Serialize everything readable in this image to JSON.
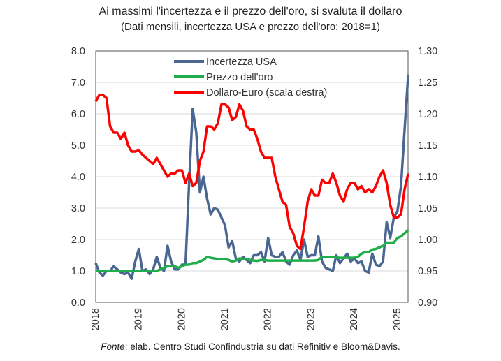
{
  "chart_data": {
    "type": "line",
    "title": "Ai massimi l'incertezza e il prezzo dell'oro, si svaluta il dollaro",
    "subtitle": "(Dati mensili, incertezza USA e prezzo dell'oro: 2018=1)",
    "source_prefix": "Fonte",
    "source": ": elab. Centro Studi Confindustria su dati Refinitiv e Bloom&Davis.",
    "x_start": "2018-01",
    "frequency": "monthly",
    "x_ticks": [
      "2018",
      "2019",
      "2020",
      "2021",
      "2022",
      "2023",
      "2024",
      "2025"
    ],
    "y_left": {
      "ylim": [
        0,
        8
      ],
      "ticks": [
        "0.0",
        "1.0",
        "2.0",
        "3.0",
        "4.0",
        "5.0",
        "6.0",
        "7.0",
        "8.0"
      ]
    },
    "y_right": {
      "ylim": [
        0.9,
        1.3
      ],
      "ticks": [
        "0.90",
        "0.95",
        "1.00",
        "1.05",
        "1.10",
        "1.15",
        "1.20",
        "1.25",
        "1.30"
      ]
    },
    "grid": true,
    "legend": "top-center",
    "series": [
      {
        "name": "Incertezza USA",
        "axis": "left",
        "color": "#4a6791",
        "values": [
          1.25,
          0.95,
          0.85,
          1.0,
          1.0,
          1.15,
          1.05,
          0.95,
          0.9,
          0.95,
          0.75,
          1.3,
          1.7,
          1.0,
          1.05,
          0.9,
          1.05,
          1.45,
          1.1,
          1.0,
          1.8,
          1.3,
          1.05,
          1.05,
          1.2,
          1.2,
          3.8,
          6.15,
          5.4,
          3.5,
          4.0,
          3.3,
          2.8,
          3.0,
          2.95,
          2.7,
          2.45,
          1.75,
          1.95,
          1.4,
          1.3,
          1.45,
          1.35,
          1.25,
          1.5,
          1.5,
          1.6,
          1.3,
          2.05,
          1.5,
          1.45,
          1.45,
          1.6,
          1.3,
          1.2,
          1.5,
          1.65,
          1.35,
          2.0,
          1.45,
          1.5,
          1.5,
          2.1,
          1.3,
          1.1,
          1.05,
          1.0,
          1.5,
          1.25,
          1.4,
          1.55,
          1.3,
          1.4,
          1.25,
          1.3,
          1.0,
          0.95,
          1.55,
          1.2,
          1.15,
          1.3,
          2.55,
          2.05,
          2.7,
          2.9,
          3.7,
          5.5,
          7.25
        ]
      },
      {
        "name": "Prezzo dell'oro",
        "axis": "left",
        "color": "#1fae4b",
        "values": [
          1.0,
          1.0,
          1.0,
          1.0,
          1.0,
          1.0,
          1.0,
          1.0,
          1.0,
          1.0,
          1.0,
          1.0,
          1.0,
          1.0,
          1.0,
          1.0,
          1.0,
          1.0,
          1.05,
          1.1,
          1.15,
          1.15,
          1.15,
          1.1,
          1.15,
          1.2,
          1.2,
          1.25,
          1.25,
          1.3,
          1.35,
          1.45,
          1.42,
          1.4,
          1.38,
          1.38,
          1.38,
          1.35,
          1.3,
          1.33,
          1.4,
          1.38,
          1.38,
          1.35,
          1.33,
          1.32,
          1.35,
          1.35,
          1.33,
          1.33,
          1.33,
          1.33,
          1.33,
          1.33,
          1.33,
          1.33,
          1.33,
          1.33,
          1.33,
          1.33,
          1.33,
          1.33,
          1.35,
          1.45,
          1.45,
          1.45,
          1.45,
          1.43,
          1.42,
          1.42,
          1.42,
          1.42,
          1.42,
          1.45,
          1.55,
          1.6,
          1.6,
          1.68,
          1.7,
          1.75,
          1.8,
          1.9,
          1.9,
          1.9,
          2.05,
          2.1,
          2.2,
          2.3
        ]
      },
      {
        "name": "Dollaro-Euro (scala destra)",
        "axis": "right",
        "color": "#ff0000",
        "values": [
          1.22,
          1.23,
          1.23,
          1.225,
          1.18,
          1.17,
          1.17,
          1.16,
          1.17,
          1.15,
          1.14,
          1.14,
          1.142,
          1.135,
          1.13,
          1.125,
          1.12,
          1.13,
          1.12,
          1.11,
          1.1,
          1.105,
          1.105,
          1.11,
          1.11,
          1.09,
          1.105,
          1.085,
          1.09,
          1.125,
          1.14,
          1.18,
          1.18,
          1.175,
          1.185,
          1.215,
          1.215,
          1.21,
          1.19,
          1.195,
          1.215,
          1.205,
          1.18,
          1.175,
          1.175,
          1.16,
          1.14,
          1.13,
          1.13,
          1.13,
          1.1,
          1.08,
          1.06,
          1.055,
          1.02,
          1.01,
          0.99,
          0.985,
          1.02,
          1.06,
          1.08,
          1.07,
          1.07,
          1.095,
          1.09,
          1.09,
          1.105,
          1.09,
          1.07,
          1.06,
          1.08,
          1.09,
          1.09,
          1.08,
          1.085,
          1.075,
          1.08,
          1.075,
          1.085,
          1.1,
          1.11,
          1.09,
          1.055,
          1.035,
          1.035,
          1.04,
          1.08,
          1.105
        ]
      }
    ]
  }
}
